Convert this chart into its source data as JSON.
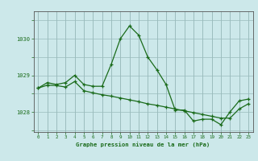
{
  "title": "Graphe pression niveau de la mer (hPa)",
  "background_color": "#cce8ea",
  "grid_color": "#99bbbb",
  "line_color": "#1a6b1a",
  "xlim": [
    -0.5,
    23.5
  ],
  "ylim": [
    1027.45,
    1030.75
  ],
  "yticks": [
    1028,
    1029,
    1030
  ],
  "xticks": [
    0,
    1,
    2,
    3,
    4,
    5,
    6,
    7,
    8,
    9,
    10,
    11,
    12,
    13,
    14,
    15,
    16,
    17,
    18,
    19,
    20,
    21,
    22,
    23
  ],
  "hours": [
    0,
    1,
    2,
    3,
    4,
    5,
    6,
    7,
    8,
    9,
    10,
    11,
    12,
    13,
    14,
    15,
    16,
    17,
    18,
    19,
    20,
    21,
    22,
    23
  ],
  "pressure": [
    1028.65,
    1028.8,
    1028.75,
    1028.8,
    1029.0,
    1028.75,
    1028.7,
    1028.7,
    1029.3,
    1030.0,
    1030.35,
    1030.1,
    1029.5,
    1029.15,
    1028.75,
    1028.05,
    1028.05,
    1027.75,
    1027.8,
    1027.8,
    1027.65,
    1028.0,
    1028.3,
    1028.35
  ],
  "pressure2": [
    1028.65,
    1028.73,
    1028.72,
    1028.68,
    1028.83,
    1028.58,
    1028.52,
    1028.47,
    1028.43,
    1028.38,
    1028.33,
    1028.28,
    1028.22,
    1028.18,
    1028.13,
    1028.08,
    1028.03,
    1027.98,
    1027.93,
    1027.88,
    1027.83,
    1027.83,
    1028.08,
    1028.22
  ]
}
